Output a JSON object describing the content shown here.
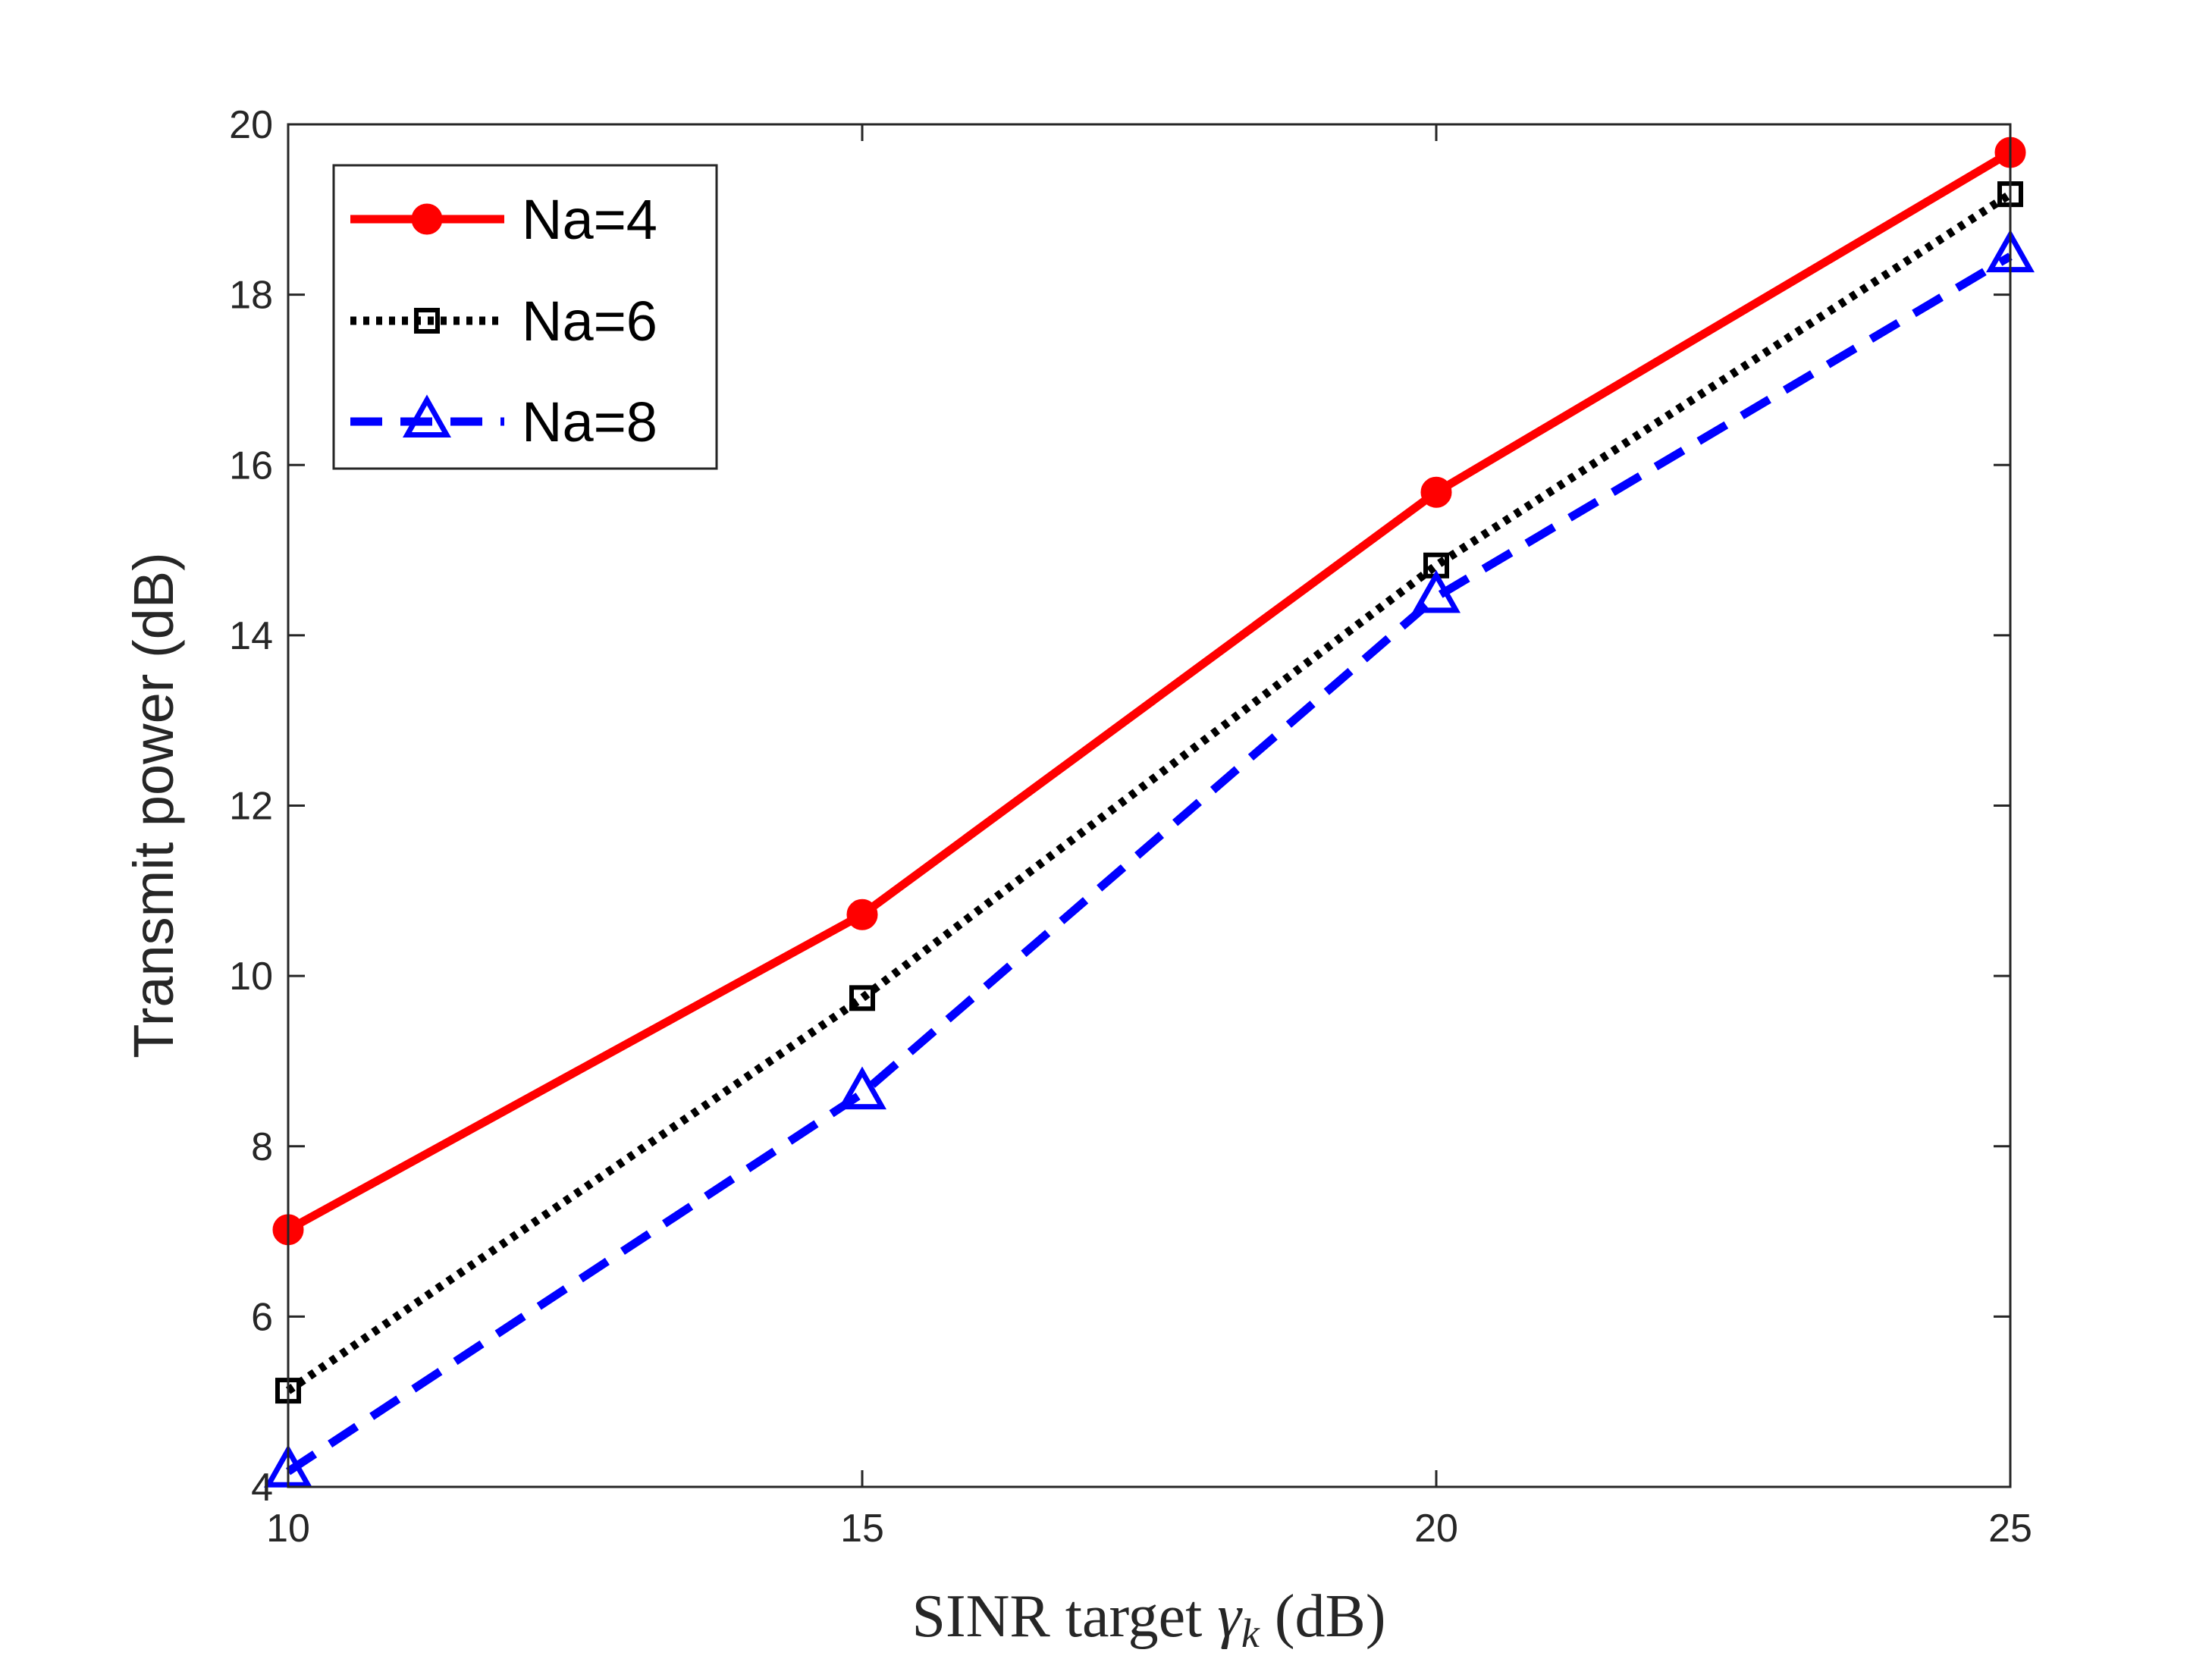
{
  "chart_data": {
    "type": "line",
    "xlabel": {
      "prefix": "SINR target ",
      "symbol": "γ",
      "subscript": "k",
      "suffix": " (dB)"
    },
    "ylabel": "Transmit power (dB)",
    "xlim": [
      10,
      25
    ],
    "ylim": [
      4,
      20
    ],
    "xticks": [
      10,
      15,
      20,
      25
    ],
    "yticks": [
      4,
      6,
      8,
      10,
      12,
      14,
      16,
      18,
      20
    ],
    "grid": false,
    "legend_position": "top-left",
    "x": [
      10,
      15,
      20,
      25
    ],
    "series": [
      {
        "name": "Na=4",
        "values": [
          7.02,
          10.72,
          15.68,
          19.67
        ],
        "color": "#ff0000",
        "line_style": "solid",
        "marker": "filled-circle"
      },
      {
        "name": "Na=6",
        "values": [
          5.13,
          9.74,
          14.82,
          19.18
        ],
        "color": "#000000",
        "line_style": "dotted",
        "marker": "open-square"
      },
      {
        "name": "Na=8",
        "values": [
          4.18,
          8.62,
          14.45,
          18.45
        ],
        "color": "#0000ff",
        "line_style": "dashed",
        "marker": "open-triangle"
      }
    ]
  }
}
